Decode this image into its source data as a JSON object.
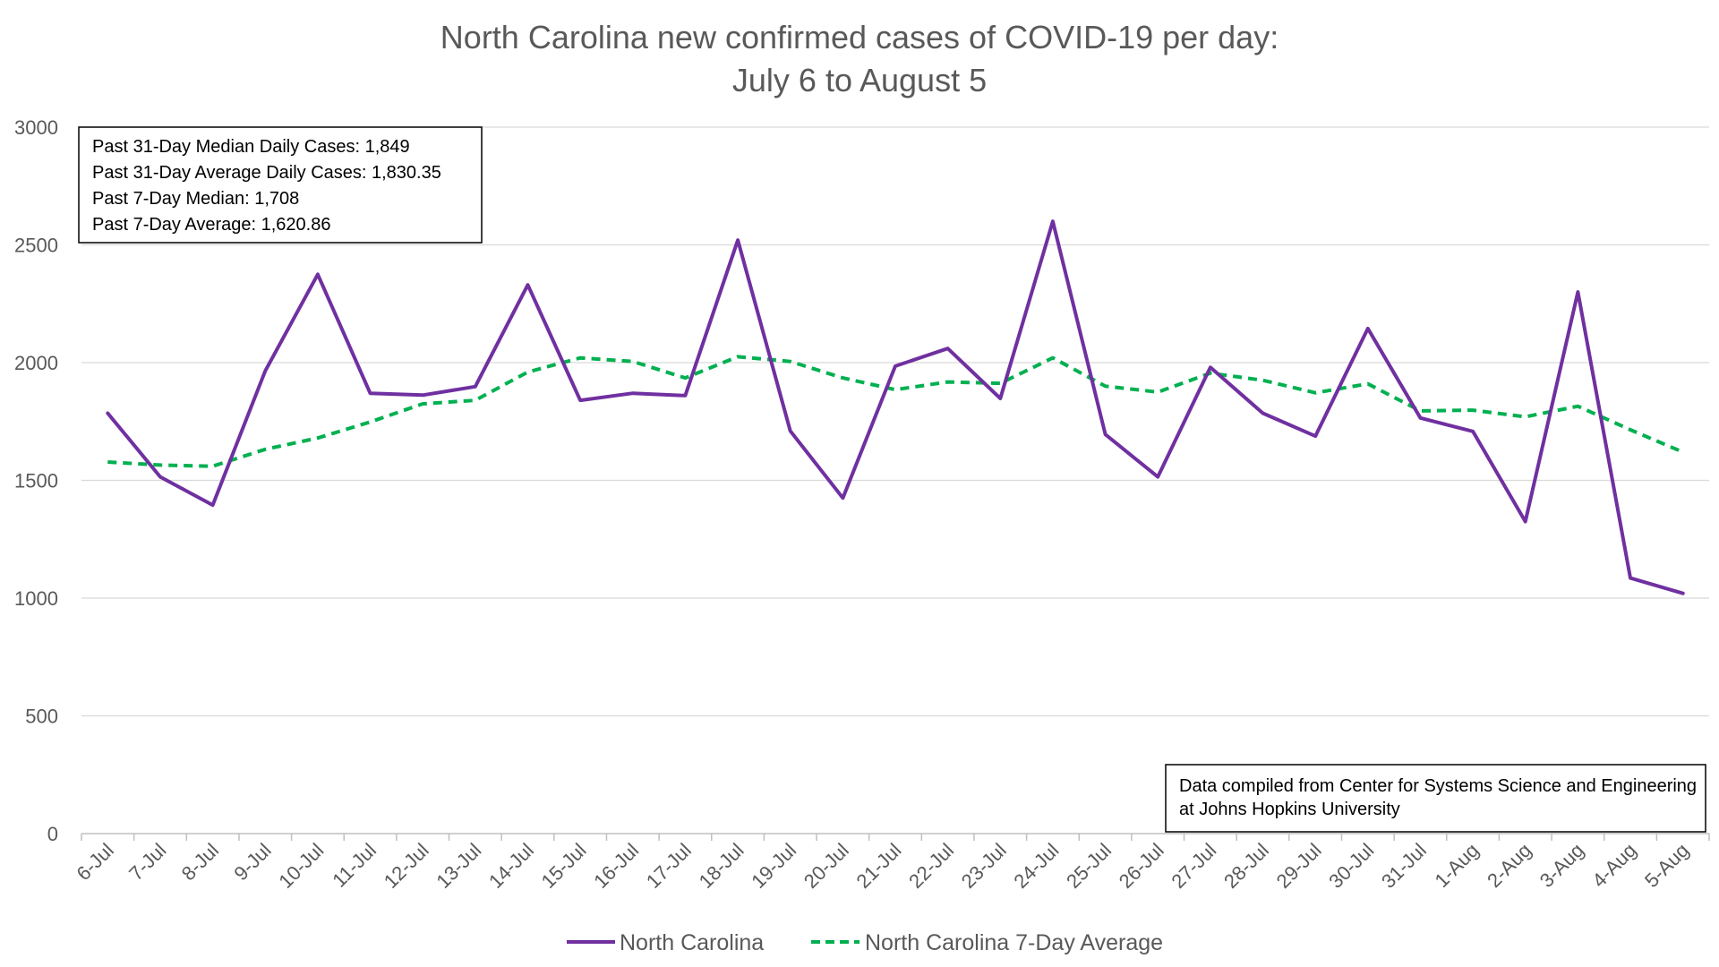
{
  "chart_data": {
    "type": "line",
    "title": "North Carolina new confirmed cases of COVID-19 per day:",
    "subtitle": "July 6 to August 5",
    "xlabel": "",
    "ylabel": "",
    "ylim": [
      0,
      3000
    ],
    "yticks": [
      0,
      500,
      1000,
      1500,
      2000,
      2500,
      3000
    ],
    "grid": true,
    "legend_position": "bottom",
    "categories": [
      "6-Jul",
      "7-Jul",
      "8-Jul",
      "9-Jul",
      "10-Jul",
      "11-Jul",
      "12-Jul",
      "13-Jul",
      "14-Jul",
      "15-Jul",
      "16-Jul",
      "17-Jul",
      "18-Jul",
      "19-Jul",
      "20-Jul",
      "21-Jul",
      "22-Jul",
      "23-Jul",
      "24-Jul",
      "25-Jul",
      "26-Jul",
      "27-Jul",
      "28-Jul",
      "29-Jul",
      "30-Jul",
      "31-Jul",
      "1-Aug",
      "2-Aug",
      "3-Aug",
      "4-Aug",
      "5-Aug"
    ],
    "series": [
      {
        "name": "North Carolina",
        "color": "#7030a0",
        "style": "solid",
        "values": [
          1785,
          1515,
          1395,
          1965,
          2375,
          1870,
          1862,
          1898,
          2330,
          1840,
          1870,
          1860,
          2520,
          1710,
          1425,
          1985,
          2060,
          1848,
          2600,
          1695,
          1515,
          1980,
          1785,
          1688,
          2145,
          1765,
          1708,
          1325,
          2300,
          1085,
          1020
        ]
      },
      {
        "name": "North Carolina 7-Day Average",
        "color": "#00b050",
        "style": "dashed",
        "values": [
          1578,
          1565,
          1560,
          1632,
          1680,
          1748,
          1825,
          1840,
          1960,
          2020,
          2005,
          1935,
          2025,
          2005,
          1935,
          1885,
          1918,
          1912,
          2020,
          1900,
          1875,
          1955,
          1925,
          1872,
          1910,
          1795,
          1798,
          1770,
          1815,
          1715,
          1620
        ]
      }
    ],
    "annotations": {
      "stats": [
        "Past 31-Day Median Daily Cases: 1,849",
        "Past 31-Day Average Daily Cases: 1,830.35",
        "Past 7-Day Median: 1,708",
        "Past 7-Day Average: 1,620.86"
      ],
      "source": [
        "Data compiled from Center for Systems Science and Engineering",
        "at Johns Hopkins University"
      ]
    }
  }
}
